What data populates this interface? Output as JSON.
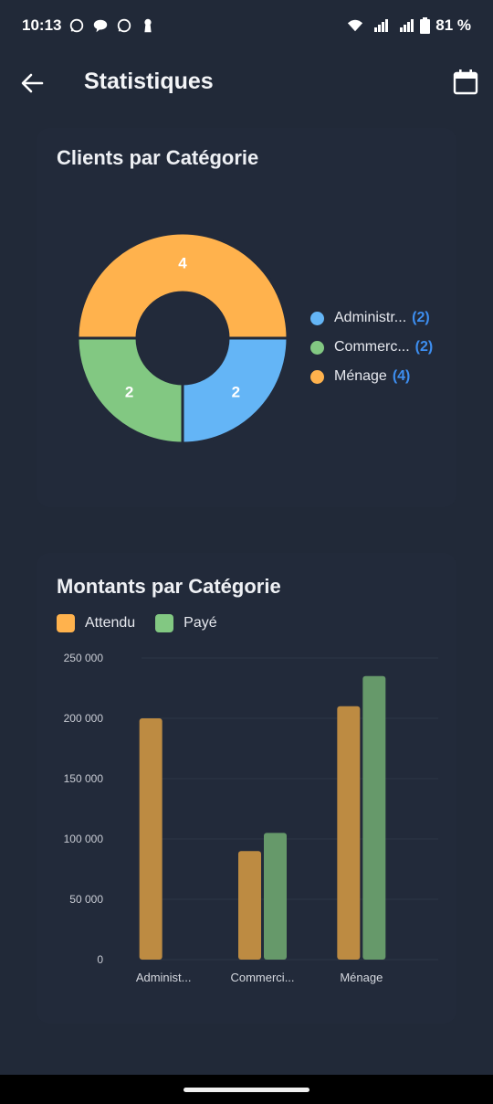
{
  "status": {
    "time": "10:13",
    "battery": "81 %"
  },
  "app_bar": {
    "title": "Statistiques",
    "back_icon": "arrow-left-icon",
    "action_icon": "calendar-icon"
  },
  "colors": {
    "background": "#212938",
    "card": "#222a3a",
    "attendu": "#ffb24d",
    "paye": "#82c882",
    "administration": "#64b5f6",
    "accent": "#3d8ef0"
  },
  "clients_card": {
    "title": "Clients par Catégorie",
    "legend": [
      {
        "name": "Administr...",
        "count": "(2)",
        "color": "#64b5f6"
      },
      {
        "name": "Commerc...",
        "count": "(2)",
        "color": "#82c882"
      },
      {
        "name": "Ménage",
        "count": "(4)",
        "color": "#ffb24d"
      }
    ]
  },
  "montants_card": {
    "title": "Montants par Catégorie",
    "legend": [
      {
        "name": "Attendu",
        "color": "#ffb24d"
      },
      {
        "name": "Payé",
        "color": "#82c882"
      }
    ]
  },
  "chart_data": [
    {
      "type": "pie",
      "donut": true,
      "title": "Clients par Catégorie",
      "categories": [
        "Administr...",
        "Commerc...",
        "Ménage"
      ],
      "values": [
        2,
        2,
        4
      ],
      "colors": [
        "#64b5f6",
        "#82c882",
        "#ffb24d"
      ],
      "data_labels": [
        "2",
        "2",
        "4"
      ],
      "legend_position": "right"
    },
    {
      "type": "bar",
      "title": "Montants par Catégorie",
      "categories": [
        "Administ...",
        "Commerci...",
        "Ménage"
      ],
      "series": [
        {
          "name": "Attendu",
          "values": [
            200000,
            90000,
            210000
          ],
          "color": "#bd8b42"
        },
        {
          "name": "Payé",
          "values": [
            0,
            105000,
            235000
          ],
          "color": "#66996a"
        }
      ],
      "ylim": [
        0,
        250000
      ],
      "y_ticks": [
        "0",
        "50 000",
        "100 000",
        "150 000",
        "200 000",
        "250 000"
      ],
      "y_tick_values": [
        0,
        50000,
        100000,
        150000,
        200000,
        250000
      ],
      "grid": true,
      "legend_position": "top-left"
    }
  ]
}
